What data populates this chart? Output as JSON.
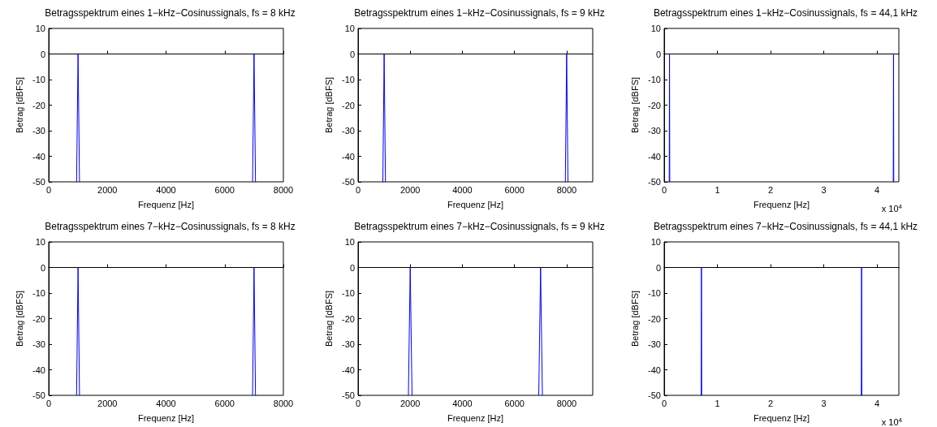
{
  "chart_data": [
    {
      "type": "line",
      "title": "Betragsspektrum eines 1−kHz−Cosinussignals, fs = 8 kHz",
      "xlabel": "Frequenz [Hz]",
      "ylabel": "Betrag [dBFS]",
      "color": "#0000ff",
      "marker": "none",
      "x": [
        950,
        1000,
        1050,
        4000,
        6950,
        7000,
        7050
      ],
      "values": [
        -50,
        0,
        -50,
        null,
        -50,
        0,
        -50
      ],
      "xlim": [
        0,
        8000
      ],
      "xticks": [
        0,
        2000,
        4000,
        6000,
        8000
      ],
      "ylim": [
        -50,
        10
      ],
      "yticks": [
        -50,
        -40,
        -30,
        -20,
        -10,
        0,
        10
      ]
    },
    {
      "type": "line",
      "title": "Betragsspektrum eines 1−kHz−Cosinussignals, fs = 9 kHz",
      "xlabel": "Frequenz [Hz]",
      "ylabel": "Betrag [dBFS]",
      "color": "#0000ff",
      "marker": "none",
      "x": [
        950,
        1000,
        1050,
        4500,
        7950,
        8000,
        8050
      ],
      "values": [
        -50,
        0,
        -50,
        null,
        -50,
        0,
        -50
      ],
      "xlim": [
        0,
        9000
      ],
      "xticks": [
        0,
        2000,
        4000,
        6000,
        8000
      ],
      "ylim": [
        -50,
        10
      ],
      "yticks": [
        -50,
        -40,
        -30,
        -20,
        -10,
        0,
        10
      ]
    },
    {
      "type": "line",
      "title": "Betragsspektrum eines 1−kHz−Cosinussignals, fs = 44,1 kHz",
      "xlabel": "Frequenz [Hz]",
      "ylabel": "Betrag [dBFS]",
      "annotations": [
        "x 10$^{4}$"
      ],
      "color": "#0000ff",
      "marker": "none",
      "x": [
        0.095,
        0.1,
        0.105,
        2.2,
        4.305,
        4.31,
        4.315
      ],
      "values": [
        -50,
        0,
        -50,
        null,
        -50,
        0,
        -50
      ],
      "xlim": [
        0,
        4.41
      ],
      "xticks": [
        0,
        1,
        2,
        3,
        4
      ],
      "ylim": [
        -50,
        10
      ],
      "yticks": [
        -50,
        -40,
        -30,
        -20,
        -10,
        0,
        10
      ]
    },
    {
      "type": "line",
      "title": "Betragsspektrum eines 7−kHz−Cosinussignals, fs = 8 kHz",
      "xlabel": "Frequenz [Hz]",
      "ylabel": "Betrag [dBFS]",
      "color": "#0000ff",
      "marker": "none",
      "x": [
        950,
        1000,
        1050,
        4000,
        6950,
        7000,
        7050
      ],
      "values": [
        -50,
        0,
        -50,
        null,
        -50,
        0,
        -50
      ],
      "xlim": [
        0,
        8000
      ],
      "xticks": [
        0,
        2000,
        4000,
        6000,
        8000
      ],
      "ylim": [
        -50,
        10
      ],
      "yticks": [
        -50,
        -40,
        -30,
        -20,
        -10,
        0,
        10
      ]
    },
    {
      "type": "line",
      "title": "Betragsspektrum eines 7−kHz−Cosinussignals, fs = 9 kHz",
      "xlabel": "Frequenz [Hz]",
      "ylabel": "Betrag [dBFS]",
      "color": "#0000ff",
      "marker": "none",
      "x": [
        1930,
        2000,
        2070,
        4500,
        6930,
        7000,
        7070
      ],
      "values": [
        -50,
        0,
        -50,
        null,
        -50,
        0,
        -50
      ],
      "xlim": [
        0,
        9000
      ],
      "xticks": [
        0,
        2000,
        4000,
        6000,
        8000
      ],
      "ylim": [
        -50,
        10
      ],
      "yticks": [
        -50,
        -40,
        -30,
        -20,
        -10,
        0,
        10
      ]
    },
    {
      "type": "line",
      "title": "Betragsspektrum eines 7−kHz−Cosinussignals, fs = 44,1 kHz",
      "xlabel": "Frequenz [Hz]",
      "ylabel": "Betrag [dBFS]",
      "annotations": [
        "x 10$^{4}$"
      ],
      "color": "#0000ff",
      "marker": "none",
      "x": [
        0.695,
        0.7,
        0.705,
        2.2,
        3.705,
        3.71,
        3.715
      ],
      "values": [
        -50,
        0,
        -50,
        null,
        -50,
        0,
        -50
      ],
      "xlim": [
        0,
        4.41
      ],
      "xticks": [
        0,
        1,
        2,
        3,
        4
      ],
      "ylim": [
        -50,
        10
      ],
      "yticks": [
        -50,
        -40,
        -30,
        -20,
        -10,
        0,
        10
      ]
    }
  ]
}
